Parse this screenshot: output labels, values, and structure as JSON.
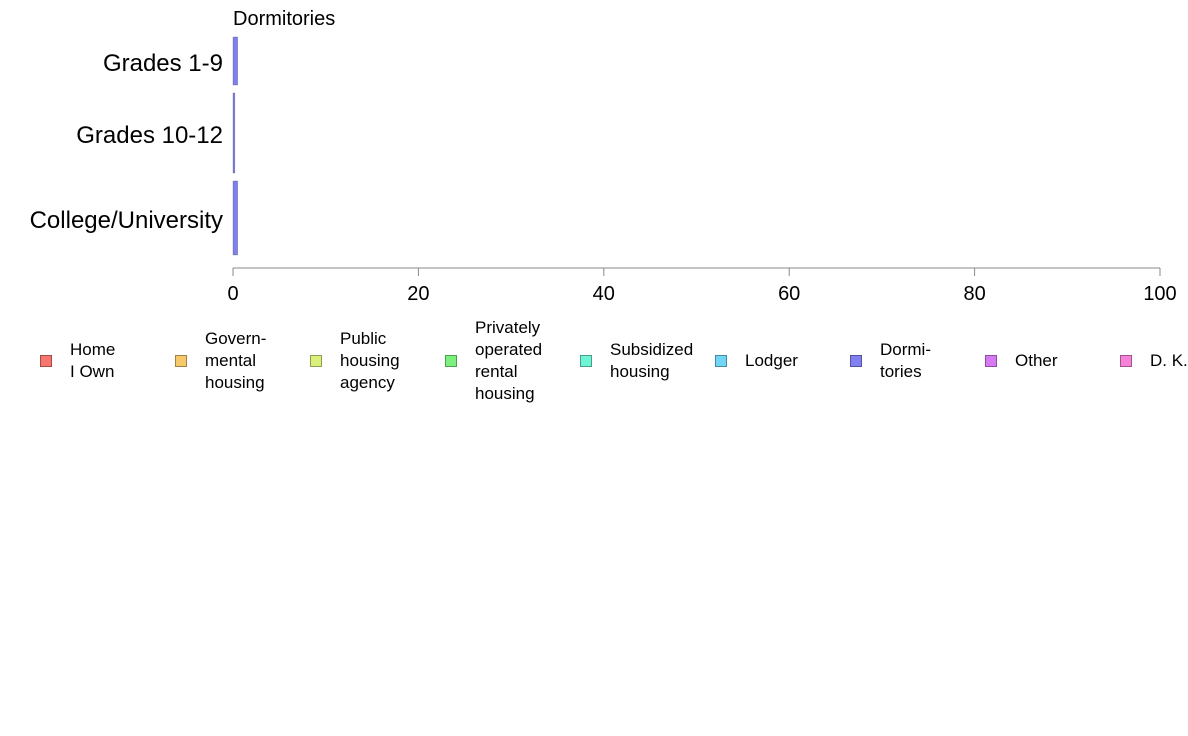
{
  "chart_data": {
    "type": "bar",
    "orientation": "horizontal",
    "stacked": true,
    "title": "Dormitories",
    "categories": [
      "Grades 1-9",
      "Grades 10-12",
      "College/University"
    ],
    "xlim": [
      0,
      100
    ],
    "x_ticks": [
      "0",
      "20",
      "40",
      "60",
      "80",
      "100"
    ],
    "grid": false,
    "legend_position": "bottom",
    "series": [
      {
        "name": "Home\nI Own",
        "color": "#F8766D",
        "values": [
          0,
          0,
          0
        ]
      },
      {
        "name": "Govern-\nmental\n housing",
        "color": "#F5C86A",
        "values": [
          0,
          0,
          0
        ]
      },
      {
        "name": "Public\nhousing\nagency",
        "color": "#D9F07A",
        "values": [
          0,
          0,
          0
        ]
      },
      {
        "name": "Privately\noperated\nrental\nhousing",
        "color": "#7CF07C",
        "values": [
          0,
          0,
          0
        ]
      },
      {
        "name": "Subsidized\n housing",
        "color": "#6FF5D3",
        "values": [
          0,
          0,
          0
        ]
      },
      {
        "name": "Lodger",
        "color": "#72D5F5",
        "values": [
          0,
          0,
          0
        ]
      },
      {
        "name": "Dormi-\ntories",
        "color": "#8080F0",
        "values": [
          0.5,
          0.2,
          0.5
        ]
      },
      {
        "name": "Other",
        "color": "#D77AF2",
        "values": [
          0,
          0,
          0
        ]
      },
      {
        "name": "D. K.",
        "color": "#F582D8",
        "values": [
          0,
          0,
          0
        ]
      }
    ]
  }
}
